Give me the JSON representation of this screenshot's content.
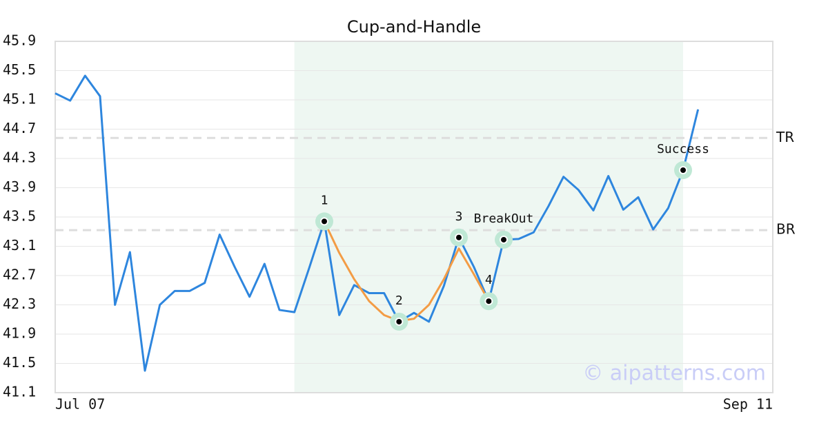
{
  "chart_data": {
    "type": "line",
    "title": "Cup-and-Handle",
    "categories": [
      "Jul 07",
      null,
      null,
      null,
      null,
      null,
      null,
      null,
      null,
      null,
      null,
      null,
      null,
      null,
      null,
      null,
      null,
      null,
      null,
      null,
      null,
      null,
      null,
      null,
      null,
      null,
      null,
      null,
      null,
      null,
      null,
      null,
      null,
      null,
      null,
      null,
      null,
      null,
      null,
      null,
      null,
      null,
      null,
      null,
      null,
      null,
      null,
      null,
      "Sep 11"
    ],
    "series": [
      {
        "color": "#2e86de",
        "values": [
          45.19,
          45.09,
          45.43,
          45.15,
          42.3,
          43.02,
          41.4,
          42.3,
          42.49,
          42.49,
          42.6,
          43.26,
          42.82,
          42.41,
          42.86,
          42.23,
          42.2,
          42.81,
          43.44,
          42.16,
          42.57,
          42.46,
          42.46,
          42.07,
          42.19,
          42.07,
          42.56,
          43.22,
          42.82,
          42.35,
          43.19,
          43.2,
          43.29,
          43.65,
          44.05,
          43.87,
          43.59,
          44.06,
          43.6,
          43.77,
          43.33,
          43.62,
          44.14,
          44.97,
          null,
          null,
          null,
          null,
          null
        ]
      },
      {
        "color": "#f39c45",
        "values": [
          null,
          null,
          null,
          null,
          null,
          null,
          null,
          null,
          null,
          null,
          null,
          null,
          null,
          null,
          null,
          null,
          null,
          null,
          43.44,
          43.01,
          42.65,
          42.35,
          42.16,
          42.08,
          42.11,
          42.3,
          42.65,
          43.07,
          42.72,
          42.35,
          null,
          null,
          null,
          null,
          null,
          null,
          null,
          null,
          null,
          null,
          null,
          null,
          null,
          null,
          null,
          null,
          null,
          null,
          null
        ]
      }
    ],
    "annotations": [
      {
        "label": "1",
        "x": 18,
        "y": 43.44
      },
      {
        "label": "2",
        "x": 23,
        "y": 42.07
      },
      {
        "label": "3",
        "x": 27,
        "y": 43.22
      },
      {
        "label": "4",
        "x": 29,
        "y": 42.35
      },
      {
        "label": "BreakOut",
        "x": 30,
        "y": 43.19
      },
      {
        "label": "Success",
        "x": 42,
        "y": 44.14
      }
    ],
    "levels": [
      {
        "name": "TR",
        "value": 44.58
      },
      {
        "name": "BR",
        "value": 43.32
      }
    ],
    "shade": {
      "from": 16,
      "to": 42,
      "color": "#eef7f2"
    },
    "ylim": [
      41.1,
      45.9
    ],
    "yticks": [
      41.1,
      41.5,
      41.9,
      42.3,
      42.7,
      43.1,
      43.5,
      43.9,
      44.3,
      44.7,
      45.1,
      45.5,
      45.9
    ],
    "grid": true,
    "watermark": "© aipatterns.com"
  }
}
